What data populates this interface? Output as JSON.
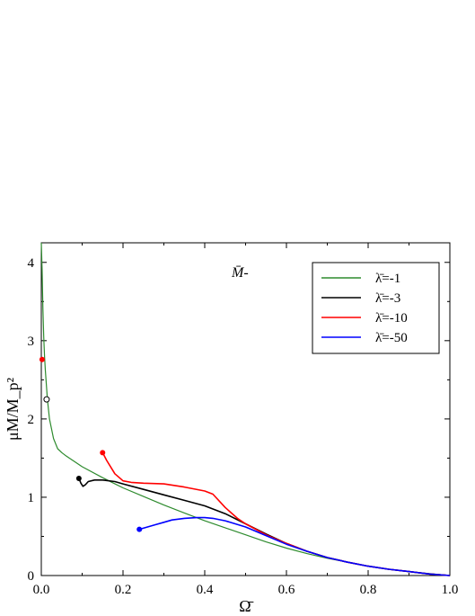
{
  "chart_data": {
    "type": "line",
    "title": "",
    "annotation": "M̄-",
    "xlabel": "Ω̄",
    "ylabel": "μM/M_p²",
    "xlim": [
      0.0,
      1.0
    ],
    "ylim": [
      0,
      4.25
    ],
    "xticks": [
      "0.0",
      "0.2",
      "0.4",
      "0.6",
      "0.8",
      "1.0"
    ],
    "yticks": [
      "0",
      "1",
      "2",
      "3",
      "4"
    ],
    "grid": false,
    "legend_position": "top-right",
    "series": [
      {
        "name": "λ̄=-1",
        "color": "#2e8b2e",
        "points": [
          [
            0.0,
            4.25
          ],
          [
            0.002,
            3.9
          ],
          [
            0.004,
            3.4
          ],
          [
            0.006,
            3.05
          ],
          [
            0.008,
            2.8
          ],
          [
            0.01,
            2.62
          ],
          [
            0.015,
            2.25
          ],
          [
            0.02,
            2.0
          ],
          [
            0.03,
            1.75
          ],
          [
            0.04,
            1.62
          ],
          [
            0.05,
            1.57
          ],
          [
            0.06,
            1.53
          ],
          [
            0.08,
            1.46
          ],
          [
            0.1,
            1.39
          ],
          [
            0.15,
            1.25
          ],
          [
            0.2,
            1.12
          ],
          [
            0.25,
            1.01
          ],
          [
            0.3,
            0.9
          ],
          [
            0.35,
            0.8
          ],
          [
            0.4,
            0.7
          ],
          [
            0.45,
            0.61
          ],
          [
            0.5,
            0.52
          ],
          [
            0.55,
            0.43
          ],
          [
            0.6,
            0.35
          ],
          [
            0.65,
            0.28
          ],
          [
            0.7,
            0.22
          ],
          [
            0.75,
            0.17
          ],
          [
            0.8,
            0.12
          ],
          [
            0.85,
            0.08
          ],
          [
            0.9,
            0.05
          ],
          [
            0.95,
            0.025
          ],
          [
            1.0,
            0.0
          ]
        ]
      },
      {
        "name": "λ̄=-3",
        "color": "#000000",
        "points": [
          [
            0.092,
            1.24
          ],
          [
            0.097,
            1.18
          ],
          [
            0.102,
            1.14
          ],
          [
            0.108,
            1.16
          ],
          [
            0.115,
            1.2
          ],
          [
            0.13,
            1.22
          ],
          [
            0.15,
            1.22
          ],
          [
            0.18,
            1.2
          ],
          [
            0.2,
            1.17
          ],
          [
            0.25,
            1.1
          ],
          [
            0.3,
            1.03
          ],
          [
            0.35,
            0.96
          ],
          [
            0.4,
            0.89
          ],
          [
            0.45,
            0.79
          ],
          [
            0.5,
            0.66
          ],
          [
            0.55,
            0.53
          ],
          [
            0.6,
            0.41
          ],
          [
            0.65,
            0.31
          ],
          [
            0.7,
            0.23
          ],
          [
            0.75,
            0.17
          ],
          [
            0.8,
            0.12
          ],
          [
            0.85,
            0.08
          ],
          [
            0.9,
            0.05
          ],
          [
            0.95,
            0.02
          ],
          [
            1.0,
            0.0
          ]
        ]
      },
      {
        "name": "λ̄=-10",
        "color": "#ff0000",
        "points": [
          [
            0.15,
            1.57
          ],
          [
            0.16,
            1.47
          ],
          [
            0.18,
            1.3
          ],
          [
            0.2,
            1.21
          ],
          [
            0.22,
            1.19
          ],
          [
            0.25,
            1.18
          ],
          [
            0.3,
            1.17
          ],
          [
            0.35,
            1.13
          ],
          [
            0.4,
            1.08
          ],
          [
            0.42,
            1.04
          ],
          [
            0.45,
            0.87
          ],
          [
            0.48,
            0.73
          ],
          [
            0.5,
            0.66
          ],
          [
            0.55,
            0.52
          ],
          [
            0.6,
            0.41
          ],
          [
            0.65,
            0.31
          ],
          [
            0.7,
            0.23
          ],
          [
            0.75,
            0.17
          ],
          [
            0.8,
            0.12
          ],
          [
            0.85,
            0.08
          ],
          [
            0.9,
            0.05
          ],
          [
            0.95,
            0.02
          ],
          [
            1.0,
            0.0
          ]
        ]
      },
      {
        "name": "λ̄=-50",
        "color": "#0000ff",
        "points": [
          [
            0.24,
            0.59
          ],
          [
            0.26,
            0.62
          ],
          [
            0.28,
            0.65
          ],
          [
            0.3,
            0.68
          ],
          [
            0.32,
            0.71
          ],
          [
            0.35,
            0.73
          ],
          [
            0.38,
            0.74
          ],
          [
            0.4,
            0.74
          ],
          [
            0.42,
            0.73
          ],
          [
            0.45,
            0.7
          ],
          [
            0.5,
            0.62
          ],
          [
            0.55,
            0.51
          ],
          [
            0.6,
            0.4
          ],
          [
            0.65,
            0.31
          ],
          [
            0.7,
            0.23
          ],
          [
            0.75,
            0.17
          ],
          [
            0.8,
            0.12
          ],
          [
            0.85,
            0.08
          ],
          [
            0.9,
            0.05
          ],
          [
            0.95,
            0.02
          ],
          [
            1.0,
            0.0
          ]
        ]
      }
    ],
    "markers": [
      {
        "series": "λ̄=-3",
        "x": 0.092,
        "y": 1.24,
        "style": "filled",
        "color": "#000000"
      },
      {
        "series": "λ̄=-10",
        "x": 0.15,
        "y": 1.57,
        "style": "filled",
        "color": "#ff0000"
      },
      {
        "series": "λ̄=-50",
        "x": 0.24,
        "y": 0.59,
        "style": "filled",
        "color": "#0000ff"
      },
      {
        "series": "λ̄=-10",
        "x": 0.002,
        "y": 2.76,
        "style": "filled",
        "color": "#ff0000"
      },
      {
        "series": "λ̄=-1",
        "x": 0.013,
        "y": 2.25,
        "style": "open",
        "color": "#000000"
      }
    ]
  }
}
